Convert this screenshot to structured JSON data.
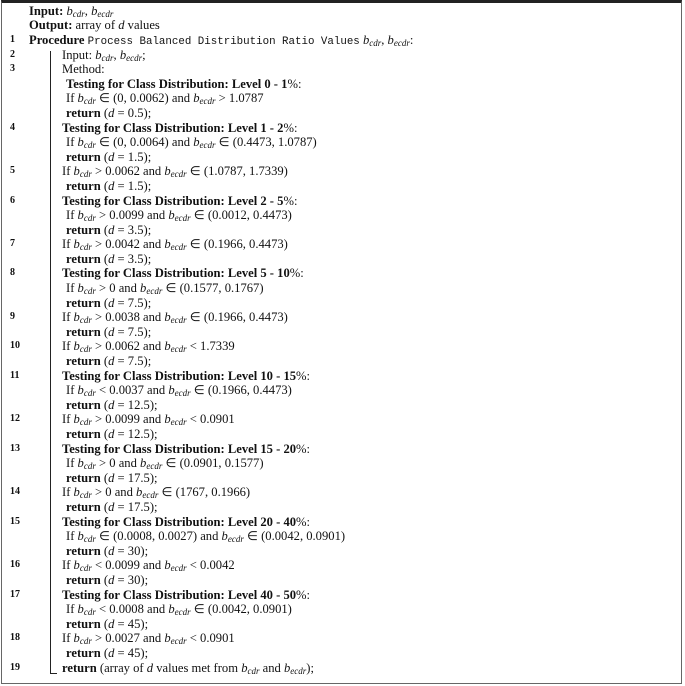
{
  "algorithm": {
    "lines": [
      {
        "kind": "h",
        "num": "",
        "text": "**Input:** $b_{cdr}$, $b_{ecdr}$"
      },
      {
        "kind": "h",
        "num": "",
        "text": "**Output:** array of $d$ values"
      },
      {
        "kind": "p",
        "num": "1",
        "text": "**Procedure** `Process Balanced Distribution Ratio Values` $b_{cdr}$, $b_{ecdr}$:"
      },
      {
        "kind": "n",
        "num": "2",
        "text": "Input: $b_{cdr}$, $b_{ecdr}$;"
      },
      {
        "kind": "n",
        "num": "3",
        "text": "Method:"
      },
      {
        "kind": "c",
        "num": "",
        "text": "**Testing for Class Distribution: Level 0 - 1**%:"
      },
      {
        "kind": "c",
        "num": "",
        "text": "If $b_{cdr}$ ∈ (0, 0.0062) and $b_{ecdr}$ > 1.0787"
      },
      {
        "kind": "c",
        "num": "",
        "text": "**return** ($d$ = 0.5);"
      },
      {
        "kind": "n",
        "num": "4",
        "text": "**Testing for Class Distribution: Level 1 - 2**%:"
      },
      {
        "kind": "c",
        "num": "",
        "text": "If $b_{cdr}$ ∈ (0, 0.0064) and $b_{ecdr}$ ∈ (0.4473, 1.0787)"
      },
      {
        "kind": "c",
        "num": "",
        "text": "**return** ($d$ = 1.5);"
      },
      {
        "kind": "n",
        "num": "5",
        "text": "If $b_{cdr}$ > 0.0062 and $b_{ecdr}$ ∈ (1.0787, 1.7339)"
      },
      {
        "kind": "c",
        "num": "",
        "text": "**return** ($d$ = 1.5);"
      },
      {
        "kind": "n",
        "num": "6",
        "text": "**Testing for Class Distribution: Level 2 - 5**%:"
      },
      {
        "kind": "c",
        "num": "",
        "text": "If $b_{cdr}$ > 0.0099 and $b_{ecdr}$ ∈ (0.0012, 0.4473)"
      },
      {
        "kind": "c",
        "num": "",
        "text": "**return** ($d$ = 3.5);"
      },
      {
        "kind": "n",
        "num": "7",
        "text": "If $b_{cdr}$ > 0.0042 and $b_{ecdr}$ ∈ (0.1966, 0.4473)"
      },
      {
        "kind": "c",
        "num": "",
        "text": "**return** ($d$ = 3.5);"
      },
      {
        "kind": "n",
        "num": "8",
        "text": "**Testing for Class Distribution: Level 5 - 10**%:"
      },
      {
        "kind": "c",
        "num": "",
        "text": "If $b_{cdr}$ > 0 and $b_{ecdr}$ ∈ (0.1577, 0.1767)"
      },
      {
        "kind": "c",
        "num": "",
        "text": "**return** ($d$ = 7.5);"
      },
      {
        "kind": "n",
        "num": "9",
        "text": "If $b_{cdr}$ > 0.0038 and $b_{ecdr}$ ∈ (0.1966, 0.4473)"
      },
      {
        "kind": "c",
        "num": "",
        "text": "**return** ($d$ = 7.5);"
      },
      {
        "kind": "n",
        "num": "10",
        "text": "If $b_{cdr}$ > 0.0062 and $b_{ecdr}$ < 1.7339"
      },
      {
        "kind": "c",
        "num": "",
        "text": "**return** ($d$ = 7.5);"
      },
      {
        "kind": "n",
        "num": "11",
        "text": "**Testing for Class Distribution: Level 10 - 15**%:"
      },
      {
        "kind": "c",
        "num": "",
        "text": "If $b_{cdr}$ < 0.0037 and $b_{ecdr}$ ∈ (0.1966, 0.4473)"
      },
      {
        "kind": "c",
        "num": "",
        "text": "**return** ($d$ = 12.5);"
      },
      {
        "kind": "n",
        "num": "12",
        "text": "If $b_{cdr}$ > 0.0099 and $b_{ecdr}$ < 0.0901"
      },
      {
        "kind": "c",
        "num": "",
        "text": "**return** ($d$ = 12.5);"
      },
      {
        "kind": "n",
        "num": "13",
        "text": "**Testing for Class Distribution: Level 15 - 20**%:"
      },
      {
        "kind": "c",
        "num": "",
        "text": "If $b_{cdr}$ > 0 and $b_{ecdr}$ ∈ (0.0901, 0.1577)"
      },
      {
        "kind": "c",
        "num": "",
        "text": "**return** ($d$ = 17.5);"
      },
      {
        "kind": "n",
        "num": "14",
        "text": "If $b_{cdr}$ > 0 and $b_{ecdr}$ ∈ (1767, 0.1966)"
      },
      {
        "kind": "c",
        "num": "",
        "text": "**return** ($d$ = 17.5);"
      },
      {
        "kind": "n",
        "num": "15",
        "text": "**Testing for Class Distribution: Level 20 - 40**%:"
      },
      {
        "kind": "c",
        "num": "",
        "text": "If $b_{cdr}$ ∈ (0.0008, 0.0027) and $b_{ecdr}$ ∈ (0.0042, 0.0901)"
      },
      {
        "kind": "c",
        "num": "",
        "text": "**return** ($d$ = 30);"
      },
      {
        "kind": "n",
        "num": "16",
        "text": "If $b_{cdr}$ < 0.0099 and $b_{ecdr}$ < 0.0042"
      },
      {
        "kind": "c",
        "num": "",
        "text": "**return** ($d$ = 30);"
      },
      {
        "kind": "n",
        "num": "17",
        "text": "**Testing for Class Distribution: Level 40 - 50**%:"
      },
      {
        "kind": "c",
        "num": "",
        "text": "If $b_{cdr}$ < 0.0008 and $b_{ecdr}$ ∈ (0.0042, 0.0901)"
      },
      {
        "kind": "c",
        "num": "",
        "text": "**return** ($d$ = 45);"
      },
      {
        "kind": "n",
        "num": "18",
        "text": "If $b_{cdr}$ > 0.0027 and $b_{ecdr}$ < 0.0901"
      },
      {
        "kind": "c",
        "num": "",
        "text": "**return** ($d$ = 45);"
      },
      {
        "kind": "n",
        "num": "19",
        "text": "**return** (array of $d$ values met from $b_{cdr}$ and $b_{ecdr}$);"
      }
    ]
  }
}
